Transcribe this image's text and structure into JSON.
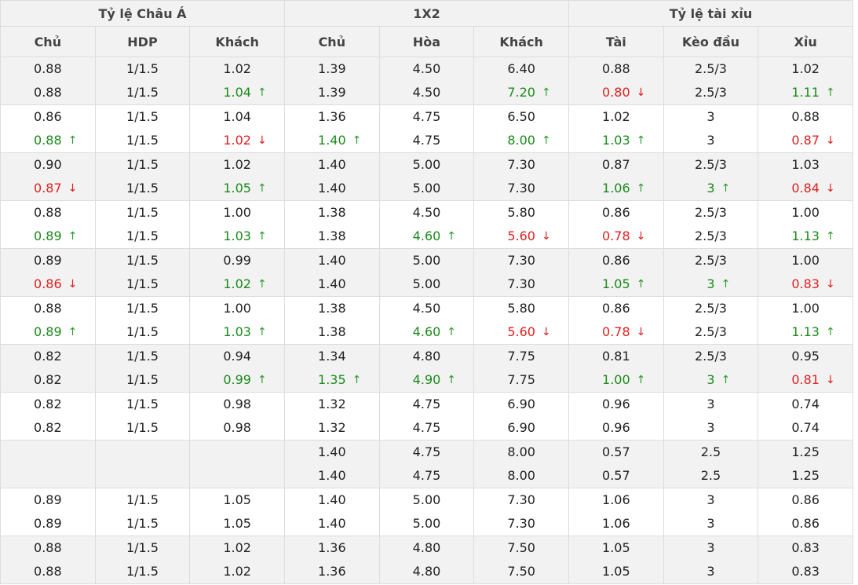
{
  "header": {
    "groups": [
      "Tỷ lệ Châu Á",
      "1X2",
      "Tỷ lệ tài xỉu"
    ],
    "columns": [
      "Chủ",
      "HDP",
      "Khách",
      "Chủ",
      "Hòa",
      "Khách",
      "Tài",
      "Kèo đầu",
      "Xỉu"
    ]
  },
  "arrows": {
    "up": "↑",
    "down": "↓"
  },
  "rows": [
    {
      "shade": true,
      "cells": [
        [
          {
            "v": "0.88"
          },
          {
            "v": "0.88"
          }
        ],
        [
          {
            "v": "1/1.5"
          },
          {
            "v": "1/1.5"
          }
        ],
        [
          {
            "v": "1.02"
          },
          {
            "v": "1.04",
            "t": "up"
          }
        ],
        [
          {
            "v": "1.39"
          },
          {
            "v": "1.39"
          }
        ],
        [
          {
            "v": "4.50"
          },
          {
            "v": "4.50"
          }
        ],
        [
          {
            "v": "6.40"
          },
          {
            "v": "7.20",
            "t": "up"
          }
        ],
        [
          {
            "v": "0.88"
          },
          {
            "v": "0.80",
            "t": "down"
          }
        ],
        [
          {
            "v": "2.5/3"
          },
          {
            "v": "2.5/3"
          }
        ],
        [
          {
            "v": "1.02"
          },
          {
            "v": "1.11",
            "t": "up"
          }
        ]
      ]
    },
    {
      "shade": false,
      "cells": [
        [
          {
            "v": "0.86"
          },
          {
            "v": "0.88",
            "t": "up"
          }
        ],
        [
          {
            "v": "1/1.5"
          },
          {
            "v": "1/1.5"
          }
        ],
        [
          {
            "v": "1.04"
          },
          {
            "v": "1.02",
            "t": "down"
          }
        ],
        [
          {
            "v": "1.36"
          },
          {
            "v": "1.40",
            "t": "up"
          }
        ],
        [
          {
            "v": "4.75"
          },
          {
            "v": "4.75"
          }
        ],
        [
          {
            "v": "6.50"
          },
          {
            "v": "8.00",
            "t": "up"
          }
        ],
        [
          {
            "v": "1.02"
          },
          {
            "v": "1.03",
            "t": "up"
          }
        ],
        [
          {
            "v": "3"
          },
          {
            "v": "3"
          }
        ],
        [
          {
            "v": "0.88"
          },
          {
            "v": "0.87",
            "t": "down"
          }
        ]
      ]
    },
    {
      "shade": true,
      "cells": [
        [
          {
            "v": "0.90"
          },
          {
            "v": "0.87",
            "t": "down"
          }
        ],
        [
          {
            "v": "1/1.5"
          },
          {
            "v": "1/1.5"
          }
        ],
        [
          {
            "v": "1.02"
          },
          {
            "v": "1.05",
            "t": "up"
          }
        ],
        [
          {
            "v": "1.40"
          },
          {
            "v": "1.40"
          }
        ],
        [
          {
            "v": "5.00"
          },
          {
            "v": "5.00"
          }
        ],
        [
          {
            "v": "7.30"
          },
          {
            "v": "7.30"
          }
        ],
        [
          {
            "v": "0.87"
          },
          {
            "v": "1.06",
            "t": "up"
          }
        ],
        [
          {
            "v": "2.5/3"
          },
          {
            "v": "3",
            "t": "up"
          }
        ],
        [
          {
            "v": "1.03"
          },
          {
            "v": "0.84",
            "t": "down"
          }
        ]
      ]
    },
    {
      "shade": false,
      "cells": [
        [
          {
            "v": "0.88"
          },
          {
            "v": "0.89",
            "t": "up"
          }
        ],
        [
          {
            "v": "1/1.5"
          },
          {
            "v": "1/1.5"
          }
        ],
        [
          {
            "v": "1.00"
          },
          {
            "v": "1.03",
            "t": "up"
          }
        ],
        [
          {
            "v": "1.38"
          },
          {
            "v": "1.38"
          }
        ],
        [
          {
            "v": "4.50"
          },
          {
            "v": "4.60",
            "t": "up"
          }
        ],
        [
          {
            "v": "5.80"
          },
          {
            "v": "5.60",
            "t": "down"
          }
        ],
        [
          {
            "v": "0.86"
          },
          {
            "v": "0.78",
            "t": "down"
          }
        ],
        [
          {
            "v": "2.5/3"
          },
          {
            "v": "2.5/3"
          }
        ],
        [
          {
            "v": "1.00"
          },
          {
            "v": "1.13",
            "t": "up"
          }
        ]
      ]
    },
    {
      "shade": true,
      "cells": [
        [
          {
            "v": "0.89"
          },
          {
            "v": "0.86",
            "t": "down"
          }
        ],
        [
          {
            "v": "1/1.5"
          },
          {
            "v": "1/1.5"
          }
        ],
        [
          {
            "v": "0.99"
          },
          {
            "v": "1.02",
            "t": "up"
          }
        ],
        [
          {
            "v": "1.40"
          },
          {
            "v": "1.40"
          }
        ],
        [
          {
            "v": "5.00"
          },
          {
            "v": "5.00"
          }
        ],
        [
          {
            "v": "7.30"
          },
          {
            "v": "7.30"
          }
        ],
        [
          {
            "v": "0.86"
          },
          {
            "v": "1.05",
            "t": "up"
          }
        ],
        [
          {
            "v": "2.5/3"
          },
          {
            "v": "3",
            "t": "up"
          }
        ],
        [
          {
            "v": "1.00"
          },
          {
            "v": "0.83",
            "t": "down"
          }
        ]
      ]
    },
    {
      "shade": false,
      "cells": [
        [
          {
            "v": "0.88"
          },
          {
            "v": "0.89",
            "t": "up"
          }
        ],
        [
          {
            "v": "1/1.5"
          },
          {
            "v": "1/1.5"
          }
        ],
        [
          {
            "v": "1.00"
          },
          {
            "v": "1.03",
            "t": "up"
          }
        ],
        [
          {
            "v": "1.38"
          },
          {
            "v": "1.38"
          }
        ],
        [
          {
            "v": "4.50"
          },
          {
            "v": "4.60",
            "t": "up"
          }
        ],
        [
          {
            "v": "5.80"
          },
          {
            "v": "5.60",
            "t": "down"
          }
        ],
        [
          {
            "v": "0.86"
          },
          {
            "v": "0.78",
            "t": "down"
          }
        ],
        [
          {
            "v": "2.5/3"
          },
          {
            "v": "2.5/3"
          }
        ],
        [
          {
            "v": "1.00"
          },
          {
            "v": "1.13",
            "t": "up"
          }
        ]
      ]
    },
    {
      "shade": true,
      "cells": [
        [
          {
            "v": "0.82"
          },
          {
            "v": "0.82"
          }
        ],
        [
          {
            "v": "1/1.5"
          },
          {
            "v": "1/1.5"
          }
        ],
        [
          {
            "v": "0.94"
          },
          {
            "v": "0.99",
            "t": "up"
          }
        ],
        [
          {
            "v": "1.34"
          },
          {
            "v": "1.35",
            "t": "up"
          }
        ],
        [
          {
            "v": "4.80"
          },
          {
            "v": "4.90",
            "t": "up"
          }
        ],
        [
          {
            "v": "7.75"
          },
          {
            "v": "7.75"
          }
        ],
        [
          {
            "v": "0.81"
          },
          {
            "v": "1.00",
            "t": "up"
          }
        ],
        [
          {
            "v": "2.5/3"
          },
          {
            "v": "3",
            "t": "up"
          }
        ],
        [
          {
            "v": "0.95"
          },
          {
            "v": "0.81",
            "t": "down"
          }
        ]
      ]
    },
    {
      "shade": false,
      "cells": [
        [
          {
            "v": "0.82"
          },
          {
            "v": "0.82"
          }
        ],
        [
          {
            "v": "1/1.5"
          },
          {
            "v": "1/1.5"
          }
        ],
        [
          {
            "v": "0.98"
          },
          {
            "v": "0.98"
          }
        ],
        [
          {
            "v": "1.32"
          },
          {
            "v": "1.32"
          }
        ],
        [
          {
            "v": "4.75"
          },
          {
            "v": "4.75"
          }
        ],
        [
          {
            "v": "6.90"
          },
          {
            "v": "6.90"
          }
        ],
        [
          {
            "v": "0.96"
          },
          {
            "v": "0.96"
          }
        ],
        [
          {
            "v": "3"
          },
          {
            "v": "3"
          }
        ],
        [
          {
            "v": "0.74"
          },
          {
            "v": "0.74"
          }
        ]
      ]
    },
    {
      "shade": true,
      "cells": [
        [
          {
            "v": ""
          },
          {
            "v": ""
          }
        ],
        [
          {
            "v": ""
          },
          {
            "v": ""
          }
        ],
        [
          {
            "v": ""
          },
          {
            "v": ""
          }
        ],
        [
          {
            "v": "1.40"
          },
          {
            "v": "1.40"
          }
        ],
        [
          {
            "v": "4.75"
          },
          {
            "v": "4.75"
          }
        ],
        [
          {
            "v": "8.00"
          },
          {
            "v": "8.00"
          }
        ],
        [
          {
            "v": "0.57"
          },
          {
            "v": "0.57"
          }
        ],
        [
          {
            "v": "2.5"
          },
          {
            "v": "2.5"
          }
        ],
        [
          {
            "v": "1.25"
          },
          {
            "v": "1.25"
          }
        ]
      ]
    },
    {
      "shade": false,
      "cells": [
        [
          {
            "v": "0.89"
          },
          {
            "v": "0.89"
          }
        ],
        [
          {
            "v": "1/1.5"
          },
          {
            "v": "1/1.5"
          }
        ],
        [
          {
            "v": "1.05"
          },
          {
            "v": "1.05"
          }
        ],
        [
          {
            "v": "1.40"
          },
          {
            "v": "1.40"
          }
        ],
        [
          {
            "v": "5.00"
          },
          {
            "v": "5.00"
          }
        ],
        [
          {
            "v": "7.30"
          },
          {
            "v": "7.30"
          }
        ],
        [
          {
            "v": "1.06"
          },
          {
            "v": "1.06"
          }
        ],
        [
          {
            "v": "3"
          },
          {
            "v": "3"
          }
        ],
        [
          {
            "v": "0.86"
          },
          {
            "v": "0.86"
          }
        ]
      ]
    },
    {
      "shade": true,
      "cells": [
        [
          {
            "v": "0.88"
          },
          {
            "v": "0.88"
          }
        ],
        [
          {
            "v": "1/1.5"
          },
          {
            "v": "1/1.5"
          }
        ],
        [
          {
            "v": "1.02"
          },
          {
            "v": "1.02"
          }
        ],
        [
          {
            "v": "1.36"
          },
          {
            "v": "1.36"
          }
        ],
        [
          {
            "v": "4.80"
          },
          {
            "v": "4.80"
          }
        ],
        [
          {
            "v": "7.50"
          },
          {
            "v": "7.50"
          }
        ],
        [
          {
            "v": "1.05"
          },
          {
            "v": "1.05"
          }
        ],
        [
          {
            "v": "3"
          },
          {
            "v": "3"
          }
        ],
        [
          {
            "v": "0.83"
          },
          {
            "v": "0.83"
          }
        ]
      ]
    }
  ]
}
